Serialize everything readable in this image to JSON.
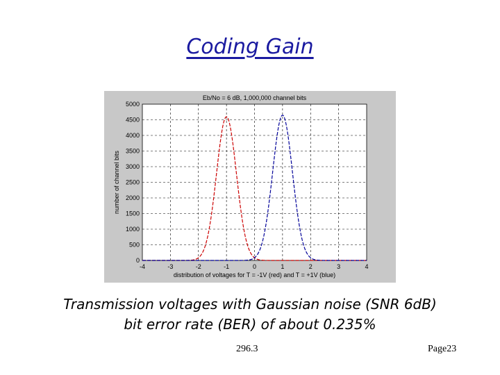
{
  "slide": {
    "title": "Coding Gain",
    "caption_line1": "Transmission voltages with Gaussian noise (SNR 6dB)",
    "caption_line2": "bit error rate (BER) of about 0.235%",
    "footer_left": "296.3",
    "footer_right": "Page23"
  },
  "chart_data": {
    "type": "line",
    "title": "Eb/No = 6 dB, 1,000,000 channel bits",
    "xlabel": "distribution of voltages for T = -1V (red) and T = +1V (blue)",
    "ylabel": "number of channel bits",
    "xlim": [
      -4,
      4
    ],
    "ylim": [
      0,
      5000
    ],
    "x_ticks": [
      "-4",
      "-3",
      "-2",
      "-1",
      "0",
      "1",
      "2",
      "3",
      "4"
    ],
    "y_ticks": [
      "0",
      "500",
      "1000",
      "1500",
      "2000",
      "2500",
      "3000",
      "3500",
      "4000",
      "4500",
      "5000"
    ],
    "grid": true,
    "series": [
      {
        "name": "T = -1V",
        "color": "#cc0000",
        "style": "dashed",
        "mean": -1,
        "peak": 4600,
        "sigma": 0.354
      },
      {
        "name": "T = +1V",
        "color": "#000099",
        "style": "dashed",
        "mean": 1,
        "peak": 4650,
        "sigma": 0.354
      }
    ]
  }
}
